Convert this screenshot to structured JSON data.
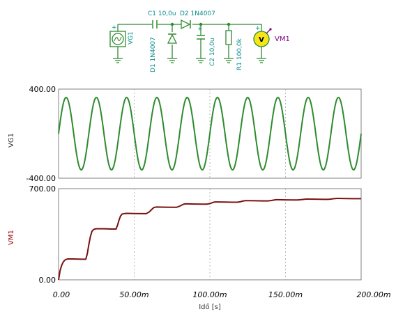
{
  "colors": {
    "vg1_trace": "#2e8b2e",
    "vm1_trace": "#7a1010",
    "schematic_wire": "#2f8a2f",
    "component_label": "#0b8c8c",
    "meter_fill": "#f5e61a",
    "meter_label": "#800080",
    "grid": "#a9a9a9"
  },
  "schematic": {
    "source_label": "VG1",
    "c1_label": "C1 10,0u",
    "d2_label": "D2 1N4007",
    "d1_label": "D1 1N4007",
    "c2_label": "C2 10,0u",
    "r1_label": "R1 100,0k",
    "meter_label": "VM1",
    "meter_symbol": "V",
    "plus_sign": "+"
  },
  "chart_data": [
    {
      "type": "line",
      "title": "",
      "ylabel": "VG1",
      "xlabel": "",
      "xlim": [
        0,
        200
      ],
      "ylim": [
        -400,
        400
      ],
      "y_tick_labels": [
        "400.00",
        "-400.00"
      ],
      "grid": true,
      "series": [
        {
          "waveform": "sine",
          "amplitude": 325,
          "frequency_hz": 50,
          "x_start_ms": 0,
          "x_end_ms": 200
        }
      ]
    },
    {
      "type": "line",
      "title": "",
      "ylabel": "VM1",
      "xlabel": "Idő [s]",
      "xlim": [
        0,
        200
      ],
      "ylim": [
        0,
        700
      ],
      "y_tick_labels": [
        "700.00",
        "0.00"
      ],
      "x_tick_labels": [
        "0.00",
        "50.00m",
        "100.00m",
        "150.00m",
        "200.00m"
      ],
      "grid": true,
      "series": [
        {
          "x": [
            0,
            1,
            2,
            3,
            4,
            5,
            6,
            10,
            15,
            18,
            19,
            20,
            21,
            22,
            23,
            24,
            25,
            30,
            35,
            38,
            39,
            40,
            41,
            42,
            43,
            44,
            45,
            50,
            55,
            58,
            60,
            62,
            63,
            64,
            65,
            70,
            75,
            78,
            80,
            82,
            83,
            84,
            85,
            90,
            95,
            98,
            100,
            102,
            103,
            104,
            105,
            110,
            115,
            118,
            120,
            122,
            123,
            124,
            125,
            130,
            135,
            138,
            140,
            142,
            143,
            144,
            145,
            150,
            155,
            158,
            160,
            162,
            163,
            164,
            165,
            170,
            175,
            178,
            180,
            182,
            183,
            184,
            185,
            190,
            195,
            200
          ],
          "y": [
            0,
            70,
            110,
            135,
            150,
            157,
            160,
            160,
            158,
            158,
            200,
            270,
            330,
            370,
            385,
            390,
            392,
            392,
            390,
            390,
            420,
            460,
            490,
            505,
            508,
            509,
            510,
            509,
            508,
            508,
            522,
            545,
            555,
            558,
            559,
            558,
            557,
            557,
            565,
            577,
            582,
            583,
            583,
            582,
            581,
            581,
            585,
            594,
            597,
            598,
            598,
            597,
            596,
            596,
            599,
            605,
            607,
            608,
            608,
            607,
            606,
            606,
            608,
            612,
            614,
            615,
            615,
            614,
            613,
            613,
            615,
            618,
            619,
            620,
            620,
            619,
            618,
            618,
            620,
            623,
            624,
            625,
            625,
            624,
            623,
            623
          ]
        }
      ]
    }
  ]
}
